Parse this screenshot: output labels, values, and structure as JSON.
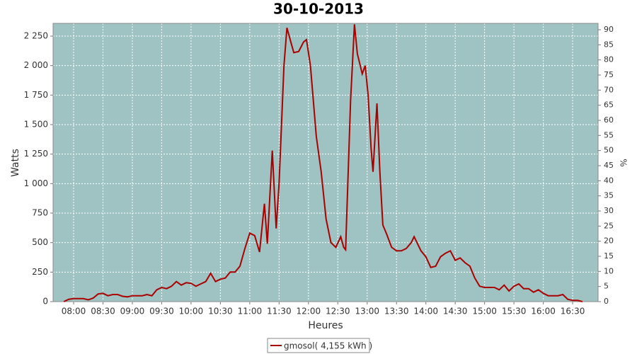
{
  "chart_data": {
    "type": "line",
    "title": "30-10-2013",
    "x_label": "Heures",
    "y_label": "Watts",
    "y2_label": "%",
    "x": [
      "07:50",
      "07:55",
      "08:00",
      "08:05",
      "08:10",
      "08:15",
      "08:20",
      "08:25",
      "08:30",
      "08:35",
      "08:40",
      "08:45",
      "08:50",
      "08:55",
      "09:00",
      "09:05",
      "09:10",
      "09:15",
      "09:20",
      "09:25",
      "09:30",
      "09:35",
      "09:40",
      "09:45",
      "09:50",
      "09:55",
      "10:00",
      "10:05",
      "10:10",
      "10:15",
      "10:20",
      "10:25",
      "10:30",
      "10:35",
      "10:40",
      "10:45",
      "10:50",
      "10:55",
      "11:00",
      "11:05",
      "11:10",
      "11:15",
      "11:18",
      "11:23",
      "11:27",
      "11:30",
      "11:35",
      "11:38",
      "11:42",
      "11:45",
      "11:50",
      "11:55",
      "11:58",
      "12:02",
      "12:08",
      "12:13",
      "12:18",
      "12:23",
      "12:28",
      "12:33",
      "12:36",
      "12:38",
      "12:43",
      "12:47",
      "12:50",
      "12:55",
      "12:58",
      "13:01",
      "13:04",
      "13:06",
      "13:10",
      "13:13",
      "13:16",
      "13:20",
      "13:25",
      "13:30",
      "13:35",
      "13:40",
      "13:45",
      "13:48",
      "13:55",
      "14:00",
      "14:05",
      "14:10",
      "14:15",
      "14:20",
      "14:25",
      "14:30",
      "14:35",
      "14:40",
      "14:45",
      "14:50",
      "14:55",
      "15:00",
      "15:05",
      "15:10",
      "15:15",
      "15:20",
      "15:25",
      "15:30",
      "15:35",
      "15:40",
      "15:45",
      "15:50",
      "15:55",
      "16:00",
      "16:05",
      "16:10",
      "16:15",
      "16:20",
      "16:25",
      "16:30",
      "16:35",
      "16:40"
    ],
    "series": [
      {
        "name": "gmosol( 4,155 kWh )",
        "color": "#aa0000",
        "values": [
          0,
          20,
          25,
          25,
          25,
          15,
          30,
          65,
          70,
          50,
          60,
          60,
          45,
          40,
          50,
          50,
          50,
          60,
          50,
          100,
          120,
          110,
          130,
          170,
          140,
          160,
          155,
          130,
          150,
          170,
          240,
          170,
          190,
          200,
          250,
          250,
          300,
          450,
          580,
          560,
          420,
          830,
          490,
          1280,
          620,
          1000,
          2000,
          2320,
          2200,
          2110,
          2120,
          2200,
          2220,
          2000,
          1400,
          1100,
          700,
          500,
          460,
          550,
          460,
          440,
          1700,
          2350,
          2100,
          1930,
          2000,
          1750,
          1300,
          1100,
          1680,
          1100,
          650,
          570,
          460,
          430,
          430,
          450,
          500,
          550,
          430,
          380,
          290,
          300,
          380,
          410,
          430,
          350,
          370,
          330,
          300,
          200,
          130,
          120,
          120,
          120,
          100,
          140,
          90,
          130,
          150,
          110,
          110,
          80,
          100,
          70,
          50,
          50,
          50,
          60,
          20,
          10,
          10,
          0
        ]
      }
    ],
    "xlim": [
      "07:39",
      "16:56"
    ],
    "xticks": [
      "08:00",
      "08:30",
      "09:00",
      "09:30",
      "10:00",
      "10:30",
      "11:00",
      "11:30",
      "12:00",
      "12:30",
      "13:00",
      "13:30",
      "14:00",
      "14:30",
      "15:00",
      "15:30",
      "16:00",
      "16:30"
    ],
    "ylim": [
      0,
      2358
    ],
    "yticks": [
      0,
      250,
      500,
      750,
      {
        "value": 1000,
        "label": "1 000"
      },
      {
        "value": 1250,
        "label": "1 250"
      },
      {
        "value": 1500,
        "label": "1 500"
      },
      {
        "value": 1750,
        "label": "1 750"
      },
      {
        "value": 2000,
        "label": "2 000"
      },
      {
        "value": 2250,
        "label": "2 250"
      }
    ],
    "y2lim": [
      0,
      92.1
    ],
    "y2ticks": [
      0,
      5,
      10,
      15,
      20,
      25,
      30,
      35,
      40,
      45,
      50,
      55,
      60,
      65,
      70,
      75,
      80,
      85,
      90
    ],
    "grid": true,
    "background": "#9fc3c3",
    "legend": "bottom"
  }
}
